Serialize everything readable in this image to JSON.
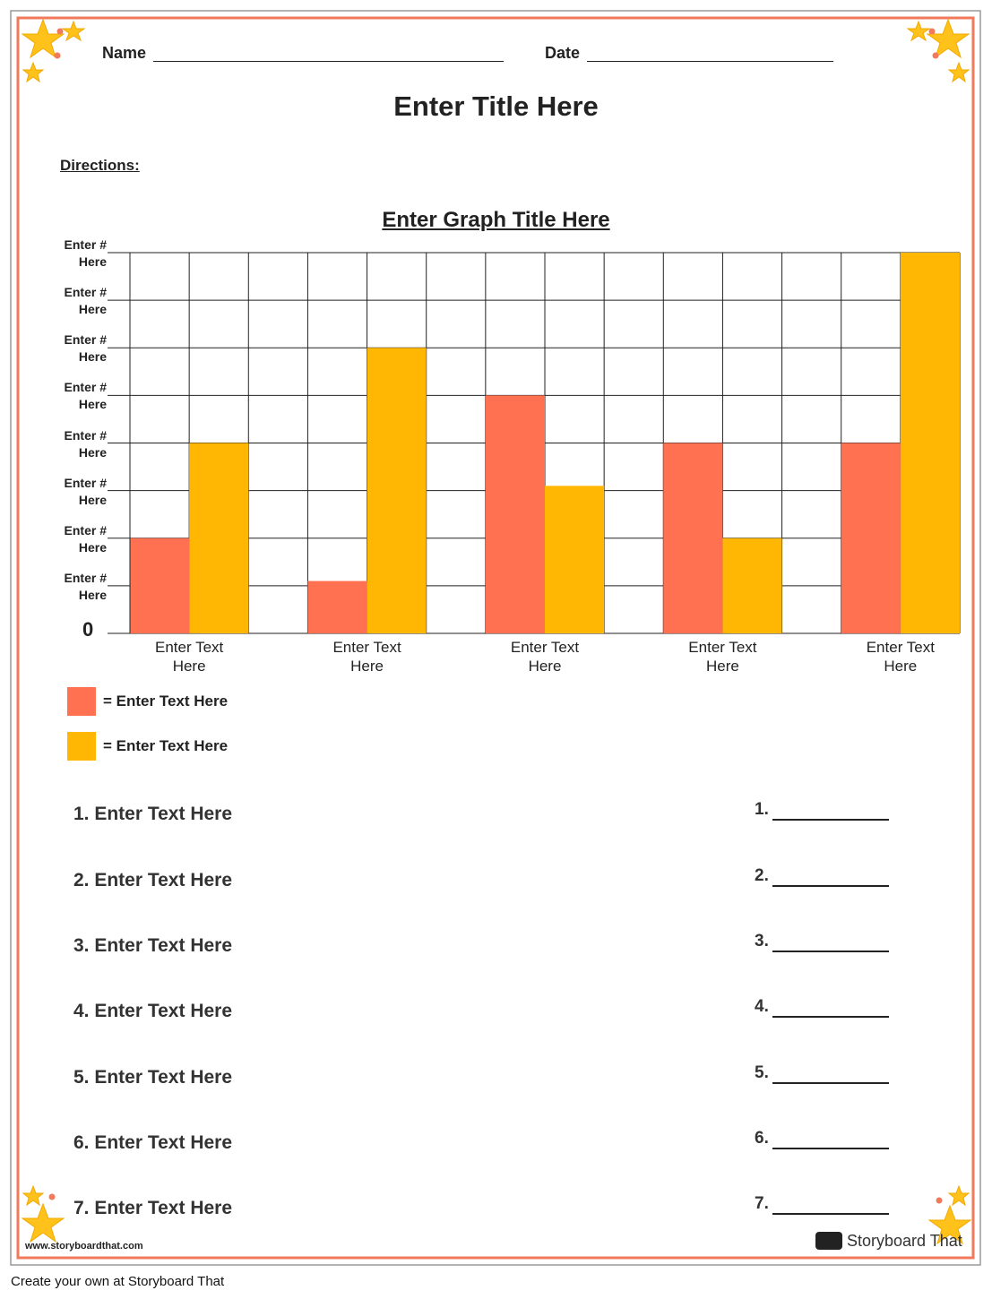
{
  "header": {
    "name_label": "Name",
    "date_label": "Date",
    "title": "Enter Title Here",
    "directions": "Directions:"
  },
  "chart_data": {
    "type": "bar",
    "title": "Enter Graph Title Here",
    "categories": [
      "Enter Text Here",
      "Enter Text Here",
      "Enter Text Here",
      "Enter Text Here",
      "Enter Text Here"
    ],
    "series": [
      {
        "name": "= Enter Text Here",
        "color": "#ff7150",
        "values": [
          2,
          1.1,
          5,
          4,
          4
        ]
      },
      {
        "name": "= Enter Text Here",
        "color": "#ffb703",
        "values": [
          4,
          6,
          3.1,
          2,
          8
        ]
      }
    ],
    "ylim": [
      0,
      8
    ],
    "yticks": [
      0,
      {
        "value": 1,
        "label": "Enter # Here"
      },
      {
        "value": 2,
        "label": "Enter # Here"
      },
      {
        "value": 3,
        "label": "Enter # Here"
      },
      {
        "value": 4,
        "label": "Enter # Here"
      },
      {
        "value": 5,
        "label": "Enter # Here"
      },
      {
        "value": 6,
        "label": "Enter # Here"
      },
      {
        "value": 7,
        "label": "Enter # Here"
      },
      {
        "value": 8,
        "label": "Enter # Here"
      }
    ],
    "grid": true
  },
  "questions": [
    "1. Enter Text Here",
    "2. Enter Text Here",
    "3. Enter Text Here",
    "4. Enter Text Here",
    "5. Enter Text Here",
    "6. Enter Text Here",
    "7. Enter Text Here"
  ],
  "answers": [
    "1.",
    "2.",
    "3.",
    "4.",
    "5.",
    "6.",
    "7."
  ],
  "footer": {
    "website": "www.storyboardthat.com",
    "logo": "Storyboard That",
    "credit": "Create your own at Storyboard That"
  }
}
